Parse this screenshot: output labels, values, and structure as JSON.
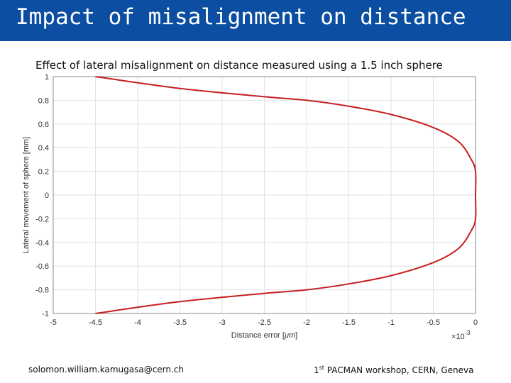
{
  "slide": {
    "title": "Impact of misalignment on distance",
    "footer_left": "solomon.william.kamugasa@cern.ch",
    "footer_ordinal": "1",
    "footer_sup": "st",
    "footer_right": " PACMAN workshop, CERN, Geneva",
    "colors": {
      "title_bar": "#0b4ea2",
      "title_text": "#ffffff",
      "curve": "#c81e1e"
    }
  },
  "chart_data": {
    "type": "line",
    "title": "Effect of lateral misalignment on distance measured using a 1.5 inch sphere",
    "xlabel_prefix": "Distance error [",
    "xlabel_unit": "μm",
    "xlabel_suffix": "]",
    "ylabel": "Lateral movement of sphere [mm]",
    "x_exponent_label": "×10",
    "x_exponent": "-3",
    "xlim": [
      -5,
      0
    ],
    "ylim": [
      -1,
      1
    ],
    "xticks": [
      "-5",
      "-4.5",
      "-4",
      "-3.5",
      "-3",
      "-2.5",
      "-2",
      "-1.5",
      "-1",
      "-0.5",
      "0"
    ],
    "yticks": [
      "-1",
      "-0.8",
      "-0.6",
      "-0.4",
      "-0.2",
      "0",
      "0.2",
      "0.4",
      "0.6",
      "0.8",
      "1"
    ],
    "grid": true,
    "series": [
      {
        "color": "#c81e1e",
        "points": [
          [
            -4.5,
            -1.0
          ],
          [
            -3.5,
            -0.9
          ],
          [
            -2.5,
            -0.83
          ],
          [
            -2.0,
            -0.8
          ],
          [
            -1.5,
            -0.75
          ],
          [
            -1.0,
            -0.68
          ],
          [
            -0.5,
            -0.57
          ],
          [
            -0.2,
            -0.45
          ],
          [
            -0.05,
            -0.3
          ],
          [
            0,
            -0.2
          ],
          [
            0,
            0
          ],
          [
            0,
            0.2
          ],
          [
            -0.05,
            0.3
          ],
          [
            -0.2,
            0.45
          ],
          [
            -0.5,
            0.57
          ],
          [
            -1.0,
            0.68
          ],
          [
            -1.5,
            0.75
          ],
          [
            -2.0,
            0.8
          ],
          [
            -2.5,
            0.83
          ],
          [
            -3.5,
            0.9
          ],
          [
            -4.5,
            1.0
          ]
        ]
      }
    ]
  }
}
